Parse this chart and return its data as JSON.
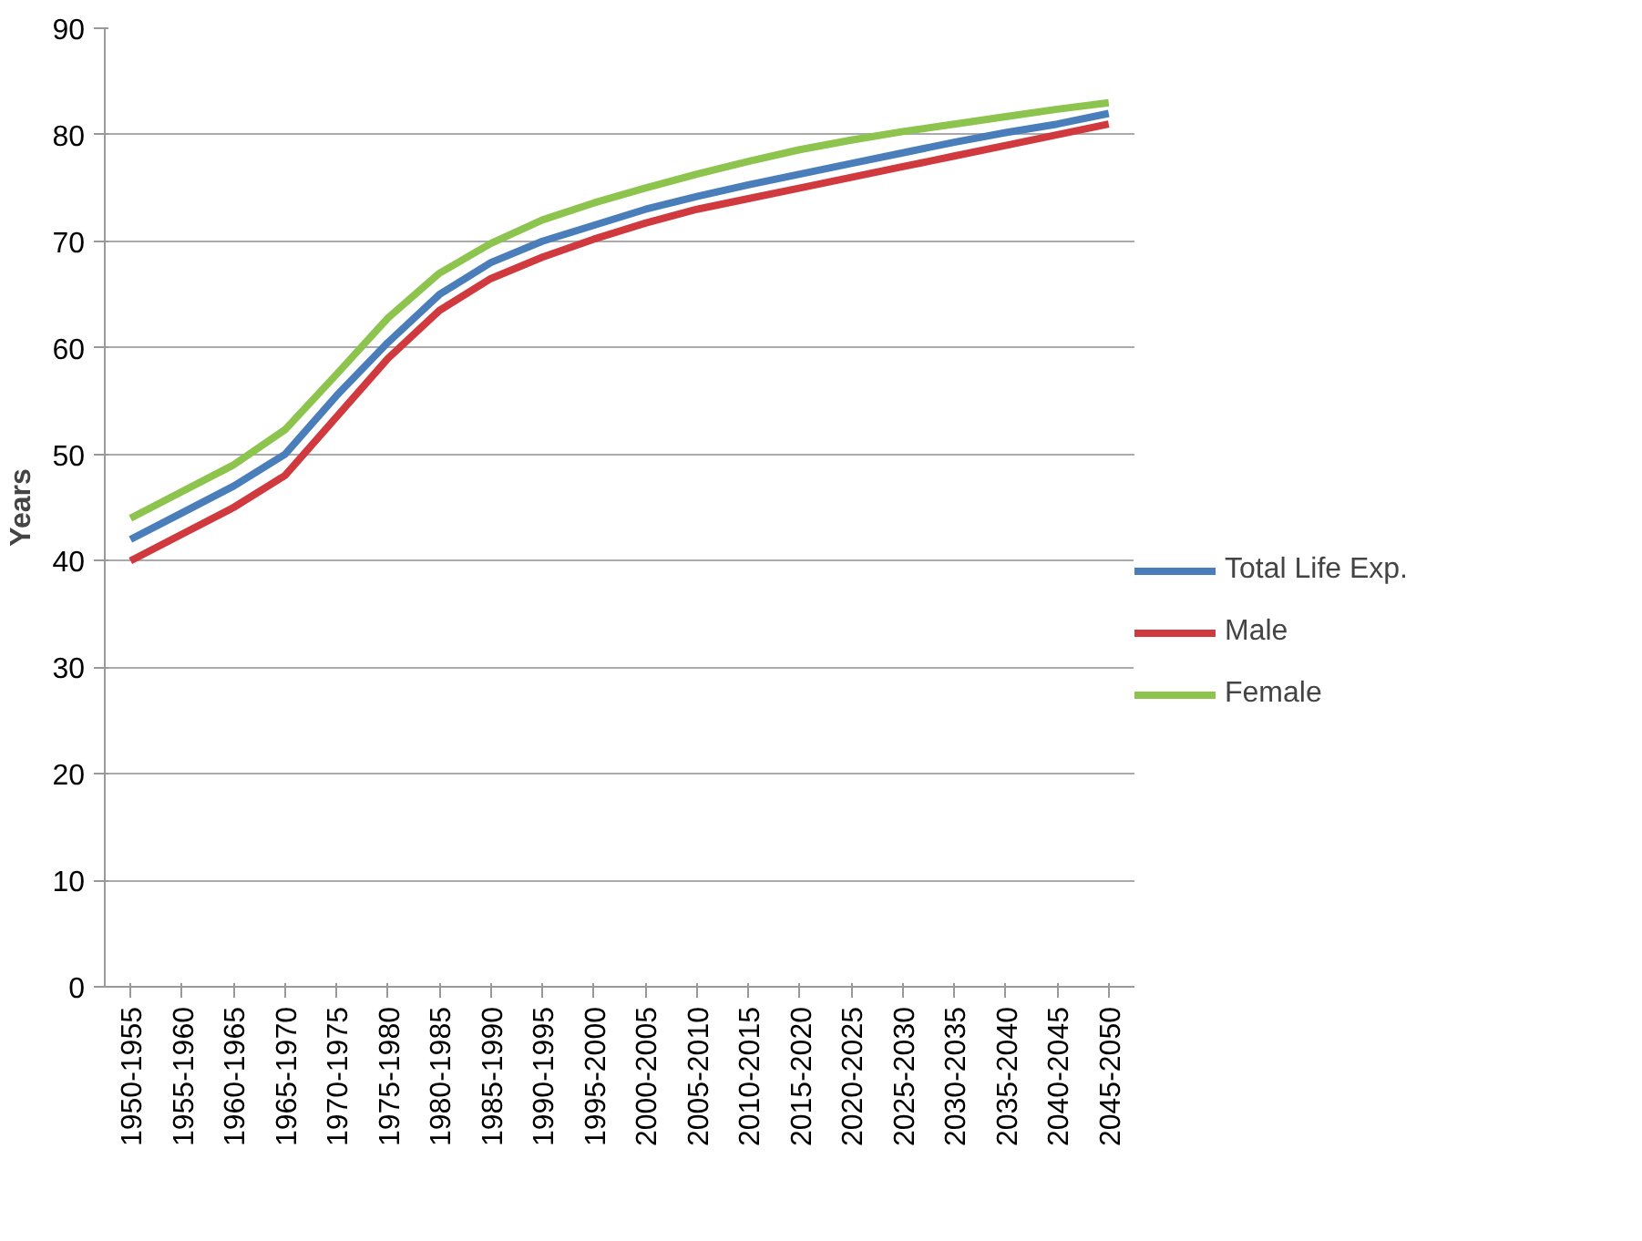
{
  "chart_data": {
    "type": "line",
    "ylabel": "Years",
    "categories": [
      "1950-1955",
      "1955-1960",
      "1960-1965",
      "1965-1970",
      "1970-1975",
      "1975-1980",
      "1980-1985",
      "1985-1990",
      "1990-1995",
      "1995-2000",
      "2000-2005",
      "2005-2010",
      "2010-2015",
      "2015-2020",
      "2020-2025",
      "2025-2030",
      "2030-2035",
      "2035-2040",
      "2040-2045",
      "2045-2050"
    ],
    "series": [
      {
        "name": "Total Life Exp.",
        "color": "#4a7ebb",
        "values": [
          42,
          44.5,
          47,
          50,
          55.5,
          60.5,
          65,
          68,
          70,
          71.5,
          73,
          74.2,
          75.3,
          76.3,
          77.3,
          78.3,
          79.3,
          80.2,
          81,
          82
        ]
      },
      {
        "name": "Male",
        "color": "#d0393e",
        "values": [
          40,
          42.5,
          45,
          48,
          53.5,
          59,
          63.5,
          66.5,
          68.5,
          70.2,
          71.7,
          73,
          74,
          75,
          76,
          77,
          78,
          79,
          80,
          81
        ]
      },
      {
        "name": "Female",
        "color": "#8cc44d",
        "values": [
          44,
          46.5,
          49,
          52.3,
          57.5,
          62.8,
          67,
          69.8,
          72,
          73.6,
          75,
          76.3,
          77.5,
          78.6,
          79.5,
          80.3,
          81,
          81.7,
          82.4,
          83
        ]
      }
    ],
    "ylim": [
      0,
      90
    ],
    "yticks": [
      0,
      10,
      20,
      30,
      40,
      50,
      60,
      70,
      80,
      90
    ],
    "grid": "y",
    "legend": "right",
    "marker": "none",
    "line_style": "solid"
  }
}
